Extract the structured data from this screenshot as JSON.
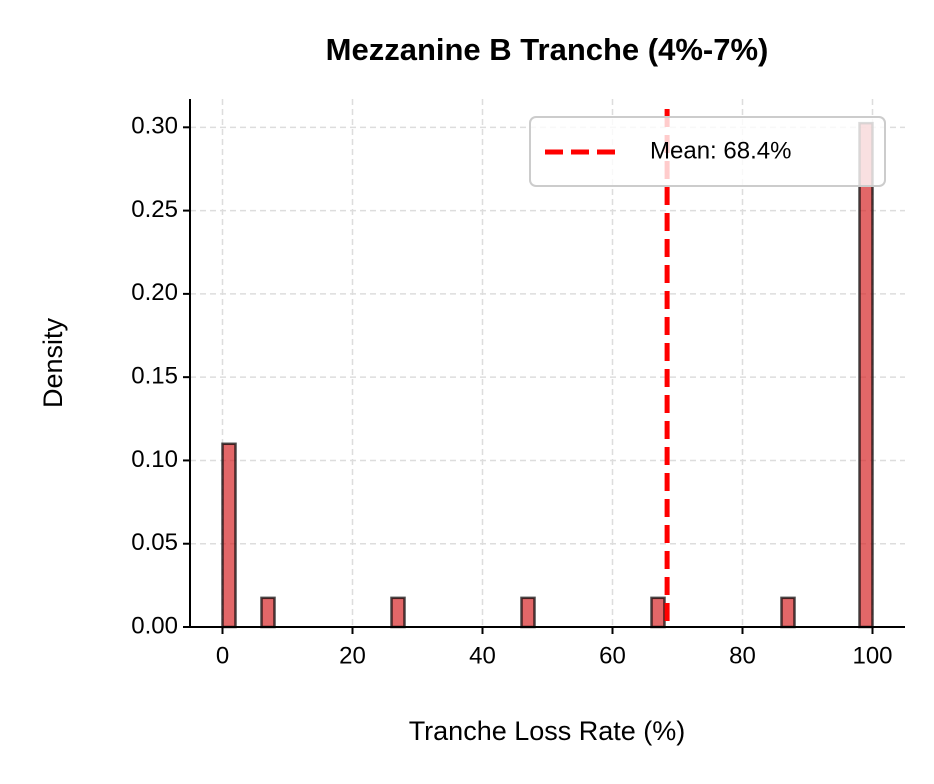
{
  "chart_data": {
    "type": "histogram",
    "title": "Mezzanine B Tranche (4%-7%)",
    "x_label": "Tranche Loss Rate (%)",
    "y_label": "Density",
    "bins": [
      0,
      2,
      4,
      6,
      8,
      10,
      12,
      14,
      16,
      18,
      20,
      22,
      24,
      26,
      28,
      30,
      32,
      34,
      36,
      38,
      40,
      42,
      44,
      46,
      48,
      50,
      52,
      54,
      56,
      58,
      60,
      62,
      64,
      66,
      68,
      70,
      72,
      74,
      76,
      78,
      80,
      82,
      84,
      86,
      88,
      90,
      92,
      94,
      96,
      98,
      100
    ],
    "values": [
      0.11,
      0,
      0,
      0.0175,
      0,
      0,
      0,
      0,
      0,
      0,
      0,
      0,
      0,
      0.0175,
      0,
      0,
      0,
      0,
      0,
      0,
      0,
      0,
      0,
      0.0175,
      0,
      0,
      0,
      0,
      0,
      0,
      0,
      0,
      0,
      0.0175,
      0,
      0,
      0,
      0,
      0,
      0,
      0,
      0,
      0,
      0.0175,
      0,
      0,
      0,
      0,
      0,
      0.3025
    ],
    "color": "#d62728",
    "xlim": [
      -5,
      105
    ],
    "xticks": [
      0,
      20,
      40,
      60,
      80,
      100
    ],
    "ylim": [
      0,
      0.317
    ],
    "yticks": [
      {
        "value": 0,
        "label": "0.00"
      },
      {
        "value": 0.05,
        "label": "0.05"
      },
      {
        "value": 0.1,
        "label": "0.10"
      },
      {
        "value": 0.15,
        "label": "0.15"
      },
      {
        "value": 0.2,
        "label": "0.20"
      },
      {
        "value": 0.25,
        "label": "0.25"
      },
      {
        "value": 0.3,
        "label": "0.30"
      }
    ],
    "grid": true,
    "legend": "upper right",
    "reference_lines": [
      {
        "name": "Mean: 68.4%",
        "value": 68.4,
        "color": "#ff0000"
      }
    ]
  }
}
